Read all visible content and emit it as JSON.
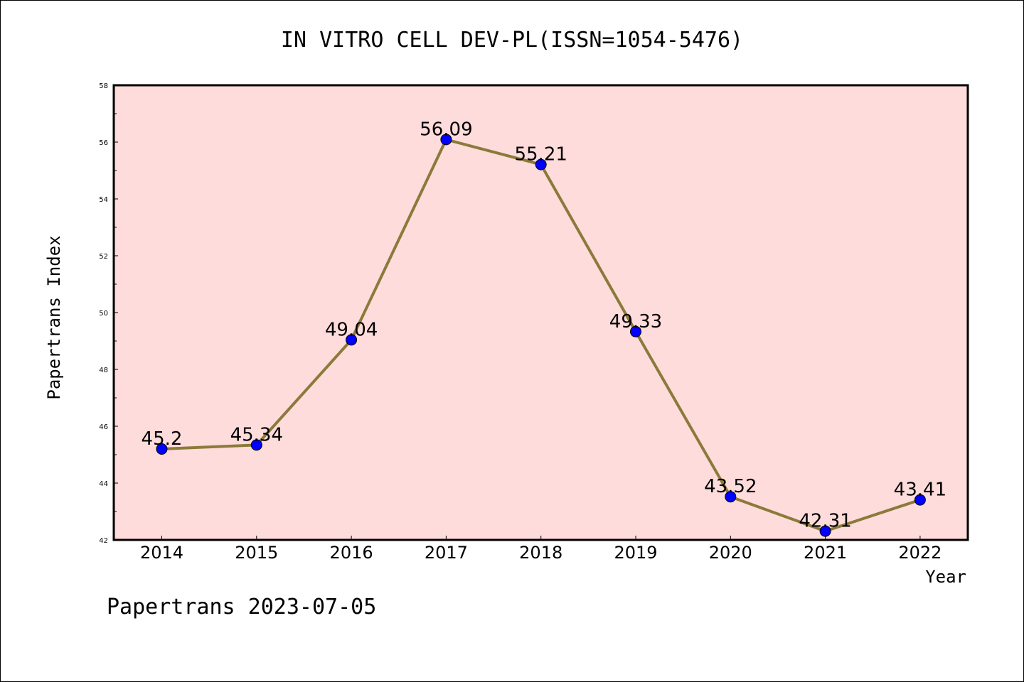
{
  "chart_data": {
    "type": "line",
    "title": "IN VITRO CELL DEV-PL(ISSN=1054-5476)",
    "xlabel": "Year",
    "ylabel": "Papertrans Index",
    "x": [
      "2014",
      "2015",
      "2016",
      "2017",
      "2018",
      "2019",
      "2020",
      "2021",
      "2022"
    ],
    "values": [
      45.2,
      45.34,
      49.04,
      56.09,
      55.21,
      49.33,
      43.52,
      42.31,
      43.41
    ],
    "data_labels": [
      "45.2",
      "45.34",
      "49.04",
      "56.09",
      "55.21",
      "49.33",
      "43.52",
      "42.31",
      "43.41"
    ],
    "ylim": [
      42,
      58
    ],
    "yticks": [
      "42",
      "44",
      "46",
      "48",
      "50",
      "52",
      "54",
      "56",
      "58"
    ],
    "grid": false,
    "legend": "none",
    "colors": {
      "plot_background": "#ffdcdc",
      "line": "#8b7a3a",
      "marker": "#0000ff"
    }
  },
  "footer": "Papertrans 2023-07-05"
}
